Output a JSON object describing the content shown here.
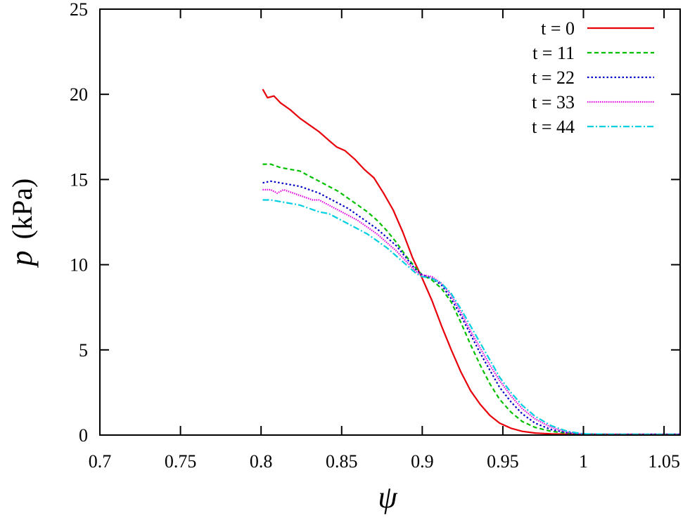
{
  "chart_data": {
    "type": "line",
    "xlabel": "ψ",
    "ylabel": "p  (kPa)",
    "ylabel_symbol": "p",
    "ylabel_unit": "(kPa)",
    "xlim": [
      0.7,
      1.06
    ],
    "ylim": [
      0,
      25
    ],
    "xticks": [
      0.7,
      0.75,
      0.8,
      0.85,
      0.9,
      0.95,
      1,
      1.05
    ],
    "xtick_labels": [
      "0.7",
      "0.75",
      "0.8",
      "0.85",
      "0.9",
      "0.95",
      "1",
      "1.05"
    ],
    "yticks": [
      0,
      5,
      10,
      15,
      20,
      25
    ],
    "ytick_labels": [
      "0",
      "5",
      "10",
      "15",
      "20",
      "25"
    ],
    "grid": false,
    "legend_position": "top-right",
    "series": [
      {
        "name": "t = 0",
        "color": "#e8000b",
        "dash": "solid",
        "points": [
          [
            0.801,
            20.3
          ],
          [
            0.804,
            19.8
          ],
          [
            0.808,
            19.9
          ],
          [
            0.812,
            19.5
          ],
          [
            0.818,
            19.1
          ],
          [
            0.824,
            18.6
          ],
          [
            0.83,
            18.2
          ],
          [
            0.836,
            17.8
          ],
          [
            0.842,
            17.3
          ],
          [
            0.847,
            16.9
          ],
          [
            0.852,
            16.7
          ],
          [
            0.858,
            16.2
          ],
          [
            0.864,
            15.6
          ],
          [
            0.87,
            15.1
          ],
          [
            0.876,
            14.2
          ],
          [
            0.882,
            13.2
          ],
          [
            0.888,
            11.9
          ],
          [
            0.894,
            10.4
          ],
          [
            0.9,
            9.2
          ],
          [
            0.906,
            7.9
          ],
          [
            0.912,
            6.4
          ],
          [
            0.918,
            5.0
          ],
          [
            0.924,
            3.7
          ],
          [
            0.93,
            2.6
          ],
          [
            0.936,
            1.8
          ],
          [
            0.942,
            1.15
          ],
          [
            0.948,
            0.7
          ],
          [
            0.955,
            0.4
          ],
          [
            0.962,
            0.22
          ],
          [
            0.97,
            0.12
          ],
          [
            0.98,
            0.07
          ],
          [
            0.99,
            0.05
          ],
          [
            1.0,
            0.04
          ],
          [
            1.02,
            0.04
          ],
          [
            1.04,
            0.04
          ],
          [
            1.06,
            0.04
          ]
        ]
      },
      {
        "name": "t = 11",
        "color": "#00c000",
        "dash": "6,4",
        "points": [
          [
            0.801,
            15.9
          ],
          [
            0.806,
            15.9
          ],
          [
            0.812,
            15.7
          ],
          [
            0.818,
            15.6
          ],
          [
            0.824,
            15.5
          ],
          [
            0.83,
            15.2
          ],
          [
            0.836,
            14.9
          ],
          [
            0.842,
            14.6
          ],
          [
            0.848,
            14.3
          ],
          [
            0.854,
            13.9
          ],
          [
            0.86,
            13.5
          ],
          [
            0.866,
            13.1
          ],
          [
            0.872,
            12.6
          ],
          [
            0.878,
            12.0
          ],
          [
            0.884,
            11.3
          ],
          [
            0.89,
            10.5
          ],
          [
            0.896,
            9.8
          ],
          [
            0.9,
            9.4
          ],
          [
            0.906,
            9.1
          ],
          [
            0.912,
            8.6
          ],
          [
            0.918,
            7.8
          ],
          [
            0.924,
            6.6
          ],
          [
            0.93,
            5.3
          ],
          [
            0.936,
            4.1
          ],
          [
            0.942,
            3.0
          ],
          [
            0.948,
            2.1
          ],
          [
            0.955,
            1.35
          ],
          [
            0.962,
            0.8
          ],
          [
            0.97,
            0.45
          ],
          [
            0.98,
            0.22
          ],
          [
            0.99,
            0.11
          ],
          [
            1.0,
            0.06
          ],
          [
            1.02,
            0.04
          ],
          [
            1.04,
            0.04
          ],
          [
            1.06,
            0.04
          ]
        ]
      },
      {
        "name": "t = 22",
        "color": "#0000c8",
        "dash": "2.5,3",
        "points": [
          [
            0.801,
            14.8
          ],
          [
            0.806,
            14.9
          ],
          [
            0.812,
            14.8
          ],
          [
            0.818,
            14.7
          ],
          [
            0.824,
            14.6
          ],
          [
            0.83,
            14.4
          ],
          [
            0.836,
            14.2
          ],
          [
            0.842,
            13.9
          ],
          [
            0.848,
            13.6
          ],
          [
            0.854,
            13.3
          ],
          [
            0.86,
            12.9
          ],
          [
            0.866,
            12.5
          ],
          [
            0.872,
            12.1
          ],
          [
            0.878,
            11.6
          ],
          [
            0.884,
            11.1
          ],
          [
            0.89,
            10.4
          ],
          [
            0.896,
            9.7
          ],
          [
            0.9,
            9.4
          ],
          [
            0.906,
            9.2
          ],
          [
            0.912,
            8.8
          ],
          [
            0.918,
            8.0
          ],
          [
            0.924,
            7.0
          ],
          [
            0.93,
            5.9
          ],
          [
            0.936,
            4.8
          ],
          [
            0.942,
            3.8
          ],
          [
            0.948,
            2.8
          ],
          [
            0.955,
            1.95
          ],
          [
            0.962,
            1.25
          ],
          [
            0.97,
            0.7
          ],
          [
            0.98,
            0.32
          ],
          [
            0.99,
            0.13
          ],
          [
            1.0,
            0.05
          ],
          [
            1.02,
            0.04
          ],
          [
            1.04,
            0.04
          ],
          [
            1.06,
            0.04
          ]
        ]
      },
      {
        "name": "t = 33",
        "color": "#e000e0",
        "dash": "1.5,1.5",
        "points": [
          [
            0.801,
            14.4
          ],
          [
            0.806,
            14.4
          ],
          [
            0.81,
            14.2
          ],
          [
            0.814,
            14.4
          ],
          [
            0.82,
            14.2
          ],
          [
            0.826,
            14.0
          ],
          [
            0.832,
            13.8
          ],
          [
            0.836,
            13.8
          ],
          [
            0.842,
            13.5
          ],
          [
            0.848,
            13.2
          ],
          [
            0.854,
            12.9
          ],
          [
            0.86,
            12.6
          ],
          [
            0.866,
            12.2
          ],
          [
            0.872,
            11.8
          ],
          [
            0.878,
            11.3
          ],
          [
            0.884,
            10.8
          ],
          [
            0.89,
            10.2
          ],
          [
            0.896,
            9.6
          ],
          [
            0.9,
            9.4
          ],
          [
            0.906,
            9.3
          ],
          [
            0.912,
            8.9
          ],
          [
            0.918,
            8.2
          ],
          [
            0.924,
            7.2
          ],
          [
            0.93,
            6.1
          ],
          [
            0.936,
            5.1
          ],
          [
            0.942,
            4.1
          ],
          [
            0.948,
            3.2
          ],
          [
            0.955,
            2.3
          ],
          [
            0.962,
            1.55
          ],
          [
            0.97,
            0.95
          ],
          [
            0.98,
            0.45
          ],
          [
            0.99,
            0.17
          ],
          [
            1.0,
            0.06
          ],
          [
            1.02,
            0.04
          ],
          [
            1.04,
            0.04
          ],
          [
            1.06,
            0.04
          ]
        ]
      },
      {
        "name": "t = 44",
        "color": "#00d0e0",
        "dash": "9,3,2,3",
        "points": [
          [
            0.801,
            13.8
          ],
          [
            0.806,
            13.8
          ],
          [
            0.812,
            13.7
          ],
          [
            0.818,
            13.6
          ],
          [
            0.824,
            13.5
          ],
          [
            0.83,
            13.3
          ],
          [
            0.836,
            13.1
          ],
          [
            0.842,
            13.0
          ],
          [
            0.848,
            12.7
          ],
          [
            0.854,
            12.4
          ],
          [
            0.86,
            12.1
          ],
          [
            0.866,
            11.8
          ],
          [
            0.872,
            11.4
          ],
          [
            0.878,
            11.0
          ],
          [
            0.884,
            10.5
          ],
          [
            0.89,
            10.0
          ],
          [
            0.896,
            9.5
          ],
          [
            0.9,
            9.3
          ],
          [
            0.906,
            9.2
          ],
          [
            0.912,
            8.9
          ],
          [
            0.918,
            8.3
          ],
          [
            0.924,
            7.4
          ],
          [
            0.93,
            6.4
          ],
          [
            0.936,
            5.4
          ],
          [
            0.942,
            4.4
          ],
          [
            0.948,
            3.4
          ],
          [
            0.955,
            2.5
          ],
          [
            0.962,
            1.75
          ],
          [
            0.97,
            1.1
          ],
          [
            0.98,
            0.55
          ],
          [
            0.99,
            0.22
          ],
          [
            1.0,
            0.07
          ],
          [
            1.02,
            0.04
          ],
          [
            1.04,
            0.04
          ],
          [
            1.06,
            0.04
          ]
        ]
      }
    ]
  }
}
